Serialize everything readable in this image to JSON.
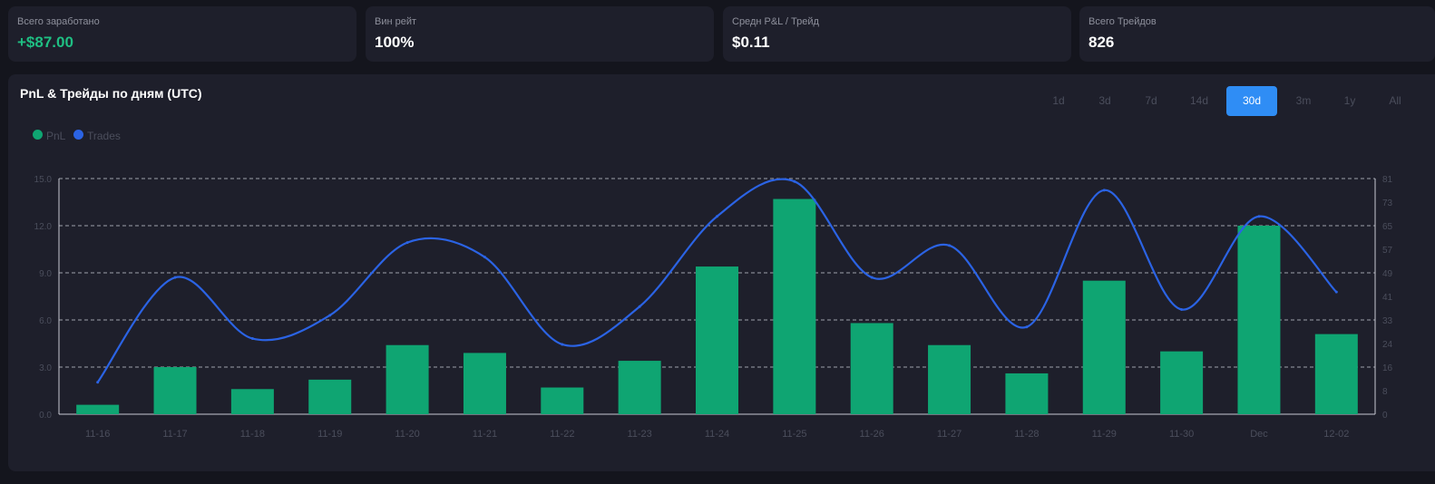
{
  "stats": [
    {
      "label": "Всего заработано",
      "value": "+$87.00",
      "accent": "#1fbf83"
    },
    {
      "label": "Вин рейт",
      "value": "100%"
    },
    {
      "label": "Средн P&L / Трейд",
      "value": "$0.11"
    },
    {
      "label": "Всего Трейдов",
      "value": "826"
    }
  ],
  "panel": {
    "title": "PnL & Трейды по дням (UTC)",
    "ranges": [
      "1d",
      "3d",
      "7d",
      "14d",
      "30d",
      "3m",
      "1y",
      "All"
    ],
    "active_range": "30d"
  },
  "legend": [
    {
      "name": "PnL",
      "color": "#0fa572"
    },
    {
      "name": "Trades",
      "color": "#2b63e4"
    }
  ],
  "chart_data": {
    "type": "bar",
    "title": "",
    "categories": [
      "11-16",
      "11-17",
      "11-18",
      "11-19",
      "11-20",
      "11-21",
      "11-22",
      "11-23",
      "11-24",
      "11-25",
      "11-26",
      "11-27",
      "11-28",
      "11-29",
      "11-30",
      "Dec",
      "12-02"
    ],
    "series": [
      {
        "name": "PnL",
        "type": "bar",
        "axis": "left",
        "color": "#0fa572",
        "values": [
          0.6,
          3.0,
          1.6,
          2.2,
          4.4,
          3.9,
          1.7,
          3.4,
          9.4,
          13.7,
          5.8,
          4.4,
          2.6,
          8.5,
          4.0,
          12.0,
          5.1
        ]
      },
      {
        "name": "Trades",
        "type": "line",
        "axis": "right",
        "color": "#2b63e4",
        "values": [
          11,
          47,
          26,
          34,
          59,
          54,
          24,
          37,
          68,
          80,
          47,
          58,
          30,
          77,
          36,
          68,
          42
        ]
      }
    ],
    "y_left": {
      "ticks": [
        "0.0",
        "3.0",
        "6.0",
        "9.0",
        "12.0",
        "15.0"
      ],
      "range": [
        0,
        15
      ]
    },
    "y_right": {
      "ticks": [
        "0",
        "8",
        "16",
        "24",
        "33",
        "41",
        "49",
        "57",
        "65",
        "73",
        "81"
      ],
      "range": [
        0,
        81
      ]
    },
    "grid": true,
    "legend_position": "top-left"
  }
}
